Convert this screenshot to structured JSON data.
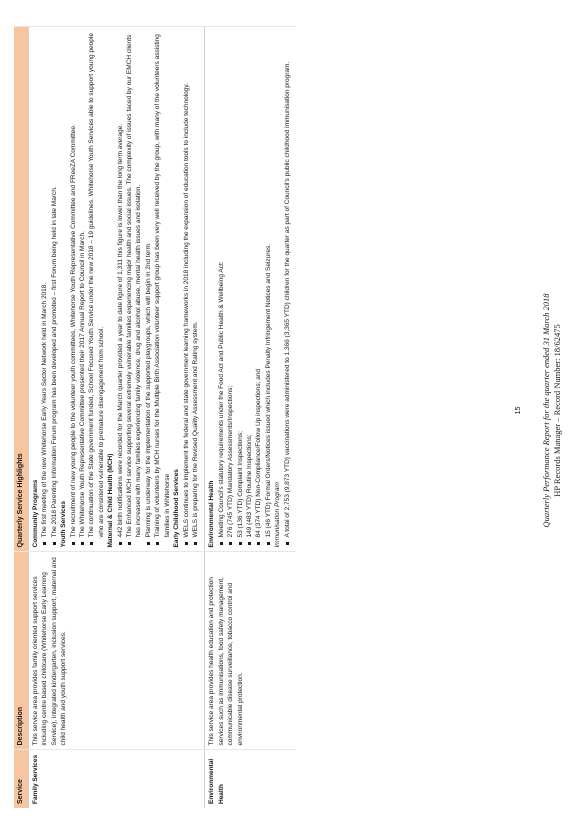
{
  "table": {
    "headers": {
      "service": "Service",
      "description": "Description",
      "highlights": "Quarterly Service Highlights"
    },
    "rows": [
      {
        "service": "Family Services",
        "description": "This service area provides family oriented support services including centre based childcare (Whitehorse Early Learning Service), integrated kindergarten, inclusion support, maternal and child health and youth support services.",
        "sections": [
          {
            "title": "Community Programs",
            "bullets": [
              "The first meeting of the new Whitehorse Early Years Sector Network held in March 2018.",
              "The 2018 Parenting Information Forum program has been developed and promoted – first Forum being held in late March."
            ]
          },
          {
            "title": "Youth Services",
            "bullets": [
              "The recruitment of new young people to the volunteer youth committees, Whitehorse Youth Representative Committee and FReeZA Committee.",
              "The Whitehorse Youth Representative Committee presented their 2017 Annual Report to Council in March.",
              "The continuation of the State government funded, School Focused Youth Service under the new 2018 – 19 guidelines. Whitehorse Youth Services able to support young people who are considered vulnerable to premature disengagement from school."
            ]
          },
          {
            "title": "Maternal & Child Health (MCH)",
            "bullets": [
              "442 birth notifications were recorded for the March quarter provided a year to date figure of 1,311  this figure is lower than the long term average.",
              "The Enhanced MCH service supporting several extremely vulnerable families experiencing major health and social issues. The complexity of issues faced by our EMCH clients has increased with many families experiencing family violence, drug and alcohol abuse, mental health issues and isolation.",
              "Planning is underway for the implementation of the supported playgroups, which will begin in 2nd term.",
              "Training of volunteers by MCH nurses for the Multiple Birth Association volunteer support group has been very well received by the group, with many of the volunteers assisting families in Whitehorse"
            ]
          },
          {
            "title": "Early Childhood Services",
            "bullets": [
              "WELS continues to implement the federal and state government learning frameworks in 2018    including the expansion of education tools to include technology.",
              "WELS is preparing for the Revised Quality Assessment and Rating system."
            ]
          }
        ]
      },
      {
        "service": "Environmental Health",
        "description": "This service area provides health education and protection services such as immunisations, food safety management, communicable disease surveillance, tobacco control and environmental protection.",
        "sections": [
          {
            "title": "Environmental Health",
            "bullets": [
              "Meeting Council's statutory requirements under the Food Act and Public Health & Wellbeing Act:",
              "276 (745 YTD) Mandatory Assessments/Inspections;",
              "53 (136 YTD) Complaint Inspections;",
              "149 (483 YTD) Routine Inspections;",
              "84 (374 YTD) Non-Compliance/Follow Up inspections; and",
              "15 (46 YTD) Formal Orders/Notices issued which includes Penalty Infringement Notices and Seizures."
            ]
          },
          {
            "title": "Immunisation Program",
            "italic": true,
            "bullets": [
              "A total of 2,753 (9,873 YTD) vaccinations were administered to 1,366 (3,365 YTD) children for the quarter as part of Council's public childhood immunisation program."
            ]
          }
        ]
      }
    ]
  },
  "page_number": "15",
  "footer": {
    "line1": "Quarterly Performance Report for the quarter ended 31 March 2018",
    "line2": "HP Records Manager – Record Number: 18/62475"
  }
}
